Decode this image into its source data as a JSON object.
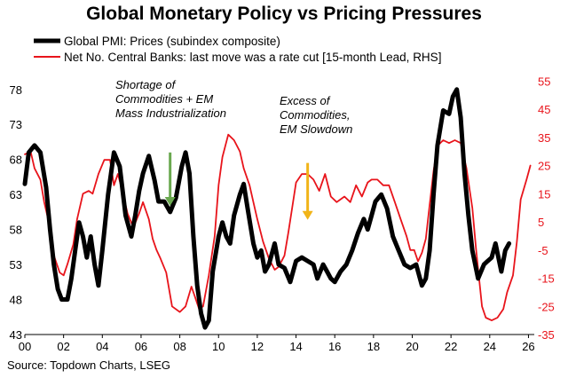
{
  "chart_data": {
    "type": "line",
    "title": "Global Monetary Policy vs Pricing Pressures",
    "source": "Source: Topdown Charts, LSEG",
    "legend_position": "top-left",
    "x_tick_labels": [
      "00",
      "02",
      "04",
      "06",
      "08",
      "10",
      "12",
      "14",
      "16",
      "18",
      "20",
      "22",
      "24",
      "26"
    ],
    "x_range": [
      2000,
      2026.3
    ],
    "y_left": {
      "range": [
        43,
        80
      ],
      "ticks": [
        "43",
        "48",
        "53",
        "58",
        "63",
        "68",
        "73",
        "78"
      ]
    },
    "y_right": {
      "range": [
        -35,
        57
      ],
      "ticks": [
        "-35",
        "-25",
        "-15",
        "-5",
        "5",
        "15",
        "25",
        "35",
        "45",
        "55"
      ],
      "color": "#e8141b"
    },
    "annotations": [
      {
        "lines": [
          "Shortage of",
          "Commodities + EM",
          "Mass Industrialization"
        ],
        "arrow_color": "#6aa84f",
        "arrow_x": 2007.5,
        "arrow_from": 69,
        "arrow_to": 61.5
      },
      {
        "lines": [
          "Excess of",
          "Commodities,",
          "EM Slowdown"
        ],
        "arrow_color": "#f1b418",
        "arrow_x": 2014.6,
        "arrow_from": 67.5,
        "arrow_to": 59.5
      }
    ],
    "series": [
      {
        "name": "Global PMI: Prices (subindex composite)",
        "axis": "left",
        "color": "#000000",
        "points": [
          [
            2000.0,
            64.5
          ],
          [
            2000.2,
            69
          ],
          [
            2000.5,
            70
          ],
          [
            2000.8,
            69
          ],
          [
            2001.1,
            64
          ],
          [
            2001.3,
            58
          ],
          [
            2001.5,
            53
          ],
          [
            2001.7,
            49.5
          ],
          [
            2001.9,
            48
          ],
          [
            2002.2,
            48
          ],
          [
            2002.4,
            51
          ],
          [
            2002.6,
            55
          ],
          [
            2002.8,
            59
          ],
          [
            2003.0,
            57
          ],
          [
            2003.2,
            54
          ],
          [
            2003.4,
            57
          ],
          [
            2003.6,
            53
          ],
          [
            2003.8,
            50
          ],
          [
            2004.0,
            55
          ],
          [
            2004.3,
            63
          ],
          [
            2004.6,
            69
          ],
          [
            2004.9,
            67
          ],
          [
            2005.2,
            60
          ],
          [
            2005.5,
            57
          ],
          [
            2005.7,
            60
          ],
          [
            2005.9,
            63.5
          ],
          [
            2006.1,
            66
          ],
          [
            2006.4,
            68.5
          ],
          [
            2006.7,
            65
          ],
          [
            2006.9,
            62
          ],
          [
            2007.2,
            62
          ],
          [
            2007.5,
            60.5
          ],
          [
            2007.8,
            62.5
          ],
          [
            2008.1,
            67
          ],
          [
            2008.3,
            69
          ],
          [
            2008.5,
            66
          ],
          [
            2008.7,
            57
          ],
          [
            2008.9,
            50
          ],
          [
            2009.1,
            46
          ],
          [
            2009.3,
            44
          ],
          [
            2009.5,
            45
          ],
          [
            2009.7,
            52
          ],
          [
            2010.0,
            57
          ],
          [
            2010.2,
            59
          ],
          [
            2010.4,
            57
          ],
          [
            2010.6,
            56
          ],
          [
            2010.8,
            60
          ],
          [
            2011.1,
            63
          ],
          [
            2011.3,
            64.5
          ],
          [
            2011.5,
            61
          ],
          [
            2011.8,
            56
          ],
          [
            2012.0,
            54
          ],
          [
            2012.2,
            55
          ],
          [
            2012.4,
            52
          ],
          [
            2012.6,
            53
          ],
          [
            2012.9,
            56
          ],
          [
            2013.1,
            53
          ],
          [
            2013.4,
            52.5
          ],
          [
            2013.7,
            50.5
          ],
          [
            2014.0,
            53.5
          ],
          [
            2014.3,
            54
          ],
          [
            2014.6,
            53.5
          ],
          [
            2014.9,
            53
          ],
          [
            2015.1,
            51
          ],
          [
            2015.4,
            53
          ],
          [
            2015.6,
            52
          ],
          [
            2015.8,
            51
          ],
          [
            2016.0,
            50.5
          ],
          [
            2016.3,
            52
          ],
          [
            2016.6,
            53
          ],
          [
            2016.9,
            55
          ],
          [
            2017.2,
            57.5
          ],
          [
            2017.5,
            59.5
          ],
          [
            2017.7,
            58
          ],
          [
            2017.9,
            60
          ],
          [
            2018.1,
            62
          ],
          [
            2018.4,
            63
          ],
          [
            2018.7,
            61
          ],
          [
            2019.0,
            57
          ],
          [
            2019.3,
            55
          ],
          [
            2019.6,
            53
          ],
          [
            2019.9,
            52.5
          ],
          [
            2020.2,
            53
          ],
          [
            2020.5,
            50
          ],
          [
            2020.7,
            51
          ],
          [
            2020.9,
            55
          ],
          [
            2021.1,
            63
          ],
          [
            2021.3,
            70
          ],
          [
            2021.6,
            75
          ],
          [
            2021.9,
            74.5
          ],
          [
            2022.1,
            77
          ],
          [
            2022.3,
            78
          ],
          [
            2022.5,
            74
          ],
          [
            2022.7,
            66
          ],
          [
            2022.9,
            60
          ],
          [
            2023.1,
            55
          ],
          [
            2023.4,
            51
          ],
          [
            2023.7,
            53
          ],
          [
            2023.9,
            53.5
          ],
          [
            2024.1,
            54
          ],
          [
            2024.3,
            56
          ],
          [
            2024.6,
            52
          ],
          [
            2024.8,
            55
          ],
          [
            2025.0,
            56
          ]
        ]
      },
      {
        "name": "Net No. Central Banks: last move was a rate cut  [15-month Lead, RHS]",
        "axis": "right",
        "color": "#e8141b",
        "points": [
          [
            2000.0,
            29
          ],
          [
            2000.3,
            30
          ],
          [
            2000.5,
            24
          ],
          [
            2000.8,
            20
          ],
          [
            2001.0,
            12
          ],
          [
            2001.3,
            3
          ],
          [
            2001.5,
            -7
          ],
          [
            2001.8,
            -13
          ],
          [
            2002.0,
            -14
          ],
          [
            2002.2,
            -10
          ],
          [
            2002.5,
            -3
          ],
          [
            2002.7,
            6
          ],
          [
            2003.0,
            15
          ],
          [
            2003.3,
            16
          ],
          [
            2003.5,
            15
          ],
          [
            2003.8,
            22
          ],
          [
            2004.1,
            27
          ],
          [
            2004.4,
            27
          ],
          [
            2004.6,
            18
          ],
          [
            2004.8,
            22
          ],
          [
            2005.0,
            17
          ],
          [
            2005.3,
            8
          ],
          [
            2005.6,
            3
          ],
          [
            2005.9,
            8
          ],
          [
            2006.1,
            12
          ],
          [
            2006.4,
            6
          ],
          [
            2006.6,
            -1
          ],
          [
            2006.8,
            -5
          ],
          [
            2007.0,
            -8
          ],
          [
            2007.3,
            -13
          ],
          [
            2007.6,
            -25
          ],
          [
            2008.0,
            -27
          ],
          [
            2008.3,
            -25
          ],
          [
            2008.6,
            -18
          ],
          [
            2008.8,
            -22
          ],
          [
            2009.0,
            -26
          ],
          [
            2009.2,
            -25
          ],
          [
            2009.5,
            -14
          ],
          [
            2009.8,
            0
          ],
          [
            2010.0,
            18
          ],
          [
            2010.2,
            28
          ],
          [
            2010.5,
            36
          ],
          [
            2010.8,
            34
          ],
          [
            2011.1,
            30
          ],
          [
            2011.3,
            24
          ],
          [
            2011.6,
            18
          ],
          [
            2011.8,
            12
          ],
          [
            2012.0,
            6
          ],
          [
            2012.3,
            -2
          ],
          [
            2012.6,
            -8
          ],
          [
            2012.9,
            -12
          ],
          [
            2013.1,
            -11
          ],
          [
            2013.4,
            -7
          ],
          [
            2013.6,
            1
          ],
          [
            2013.8,
            10
          ],
          [
            2014.0,
            19
          ],
          [
            2014.3,
            22
          ],
          [
            2014.6,
            22
          ],
          [
            2014.9,
            20
          ],
          [
            2015.2,
            16
          ],
          [
            2015.5,
            22
          ],
          [
            2015.8,
            14
          ],
          [
            2016.1,
            12
          ],
          [
            2016.5,
            14
          ],
          [
            2016.8,
            12
          ],
          [
            2017.1,
            18
          ],
          [
            2017.4,
            14
          ],
          [
            2017.7,
            19
          ],
          [
            2017.9,
            20
          ],
          [
            2018.2,
            20
          ],
          [
            2018.5,
            18
          ],
          [
            2018.8,
            18
          ],
          [
            2019.1,
            12
          ],
          [
            2019.4,
            6
          ],
          [
            2019.7,
            0
          ],
          [
            2019.9,
            -5
          ],
          [
            2020.1,
            -5
          ],
          [
            2020.3,
            -9
          ],
          [
            2020.5,
            -6
          ],
          [
            2020.7,
            -1
          ],
          [
            2020.9,
            11
          ],
          [
            2021.1,
            23
          ],
          [
            2021.3,
            32
          ],
          [
            2021.6,
            34
          ],
          [
            2021.9,
            33
          ],
          [
            2022.2,
            34
          ],
          [
            2022.5,
            33
          ],
          [
            2022.8,
            24
          ],
          [
            2023.1,
            10
          ],
          [
            2023.3,
            -5
          ],
          [
            2023.6,
            -25
          ],
          [
            2023.8,
            -29
          ],
          [
            2024.1,
            -30
          ],
          [
            2024.4,
            -29
          ],
          [
            2024.7,
            -26
          ],
          [
            2024.9,
            -20
          ],
          [
            2025.2,
            -14
          ],
          [
            2025.4,
            -2
          ],
          [
            2025.6,
            13
          ],
          [
            2025.9,
            20
          ],
          [
            2026.1,
            25
          ]
        ]
      }
    ]
  }
}
